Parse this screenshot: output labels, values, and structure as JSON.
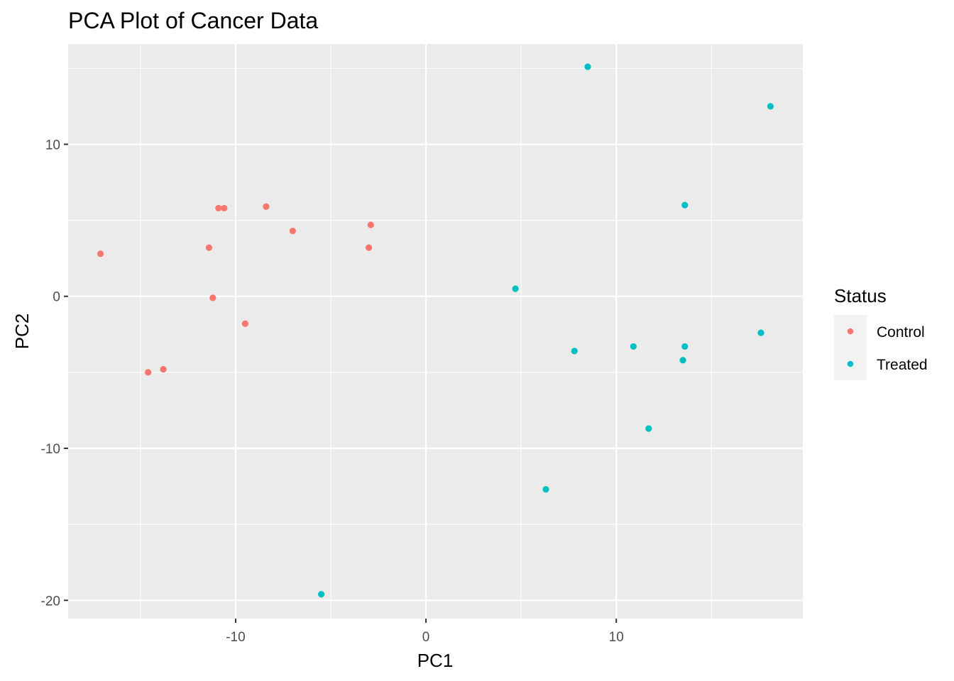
{
  "chart_data": {
    "type": "scatter",
    "title": "PCA Plot of Cancer Data",
    "xlabel": "PC1",
    "ylabel": "PC2",
    "xlim": [
      -18.8,
      19.8
    ],
    "ylim": [
      -21.2,
      16.6
    ],
    "x_major_ticks": [
      -10,
      0,
      10
    ],
    "x_minor_ticks": [
      -15,
      -5,
      5,
      15
    ],
    "y_major_ticks": [
      -20,
      -10,
      0,
      10
    ],
    "y_minor_ticks": [
      -15,
      -5,
      5,
      15
    ],
    "x_tick_labels": [
      "-10",
      "0",
      "10"
    ],
    "y_tick_labels": [
      "-20",
      "-10",
      "0",
      "10"
    ],
    "grid": true,
    "legend": {
      "title": "Status",
      "position": "right",
      "labels": [
        "Control",
        "Treated"
      ]
    },
    "series": [
      {
        "name": "Control",
        "color": "#F8766D",
        "points": [
          {
            "x": -17.1,
            "y": 2.8
          },
          {
            "x": -14.6,
            "y": -5.0
          },
          {
            "x": -13.8,
            "y": -4.8
          },
          {
            "x": -11.4,
            "y": 3.2
          },
          {
            "x": -11.2,
            "y": -0.1
          },
          {
            "x": -10.9,
            "y": 5.8
          },
          {
            "x": -10.6,
            "y": 5.8
          },
          {
            "x": -9.5,
            "y": -1.8
          },
          {
            "x": -8.4,
            "y": 5.9
          },
          {
            "x": -7.0,
            "y": 4.3
          },
          {
            "x": -3.0,
            "y": 3.2
          },
          {
            "x": -2.9,
            "y": 4.7
          }
        ]
      },
      {
        "name": "Treated",
        "color": "#00BFC4",
        "points": [
          {
            "x": -5.5,
            "y": -19.6
          },
          {
            "x": 4.7,
            "y": 0.5
          },
          {
            "x": 6.3,
            "y": -12.7
          },
          {
            "x": 7.8,
            "y": -3.6
          },
          {
            "x": 8.5,
            "y": 15.1
          },
          {
            "x": 10.9,
            "y": -3.3
          },
          {
            "x": 11.7,
            "y": -8.7
          },
          {
            "x": 13.5,
            "y": -4.2
          },
          {
            "x": 13.6,
            "y": 6.0
          },
          {
            "x": 13.6,
            "y": -3.3
          },
          {
            "x": 17.6,
            "y": -2.4
          },
          {
            "x": 18.1,
            "y": 12.5
          }
        ]
      }
    ]
  }
}
